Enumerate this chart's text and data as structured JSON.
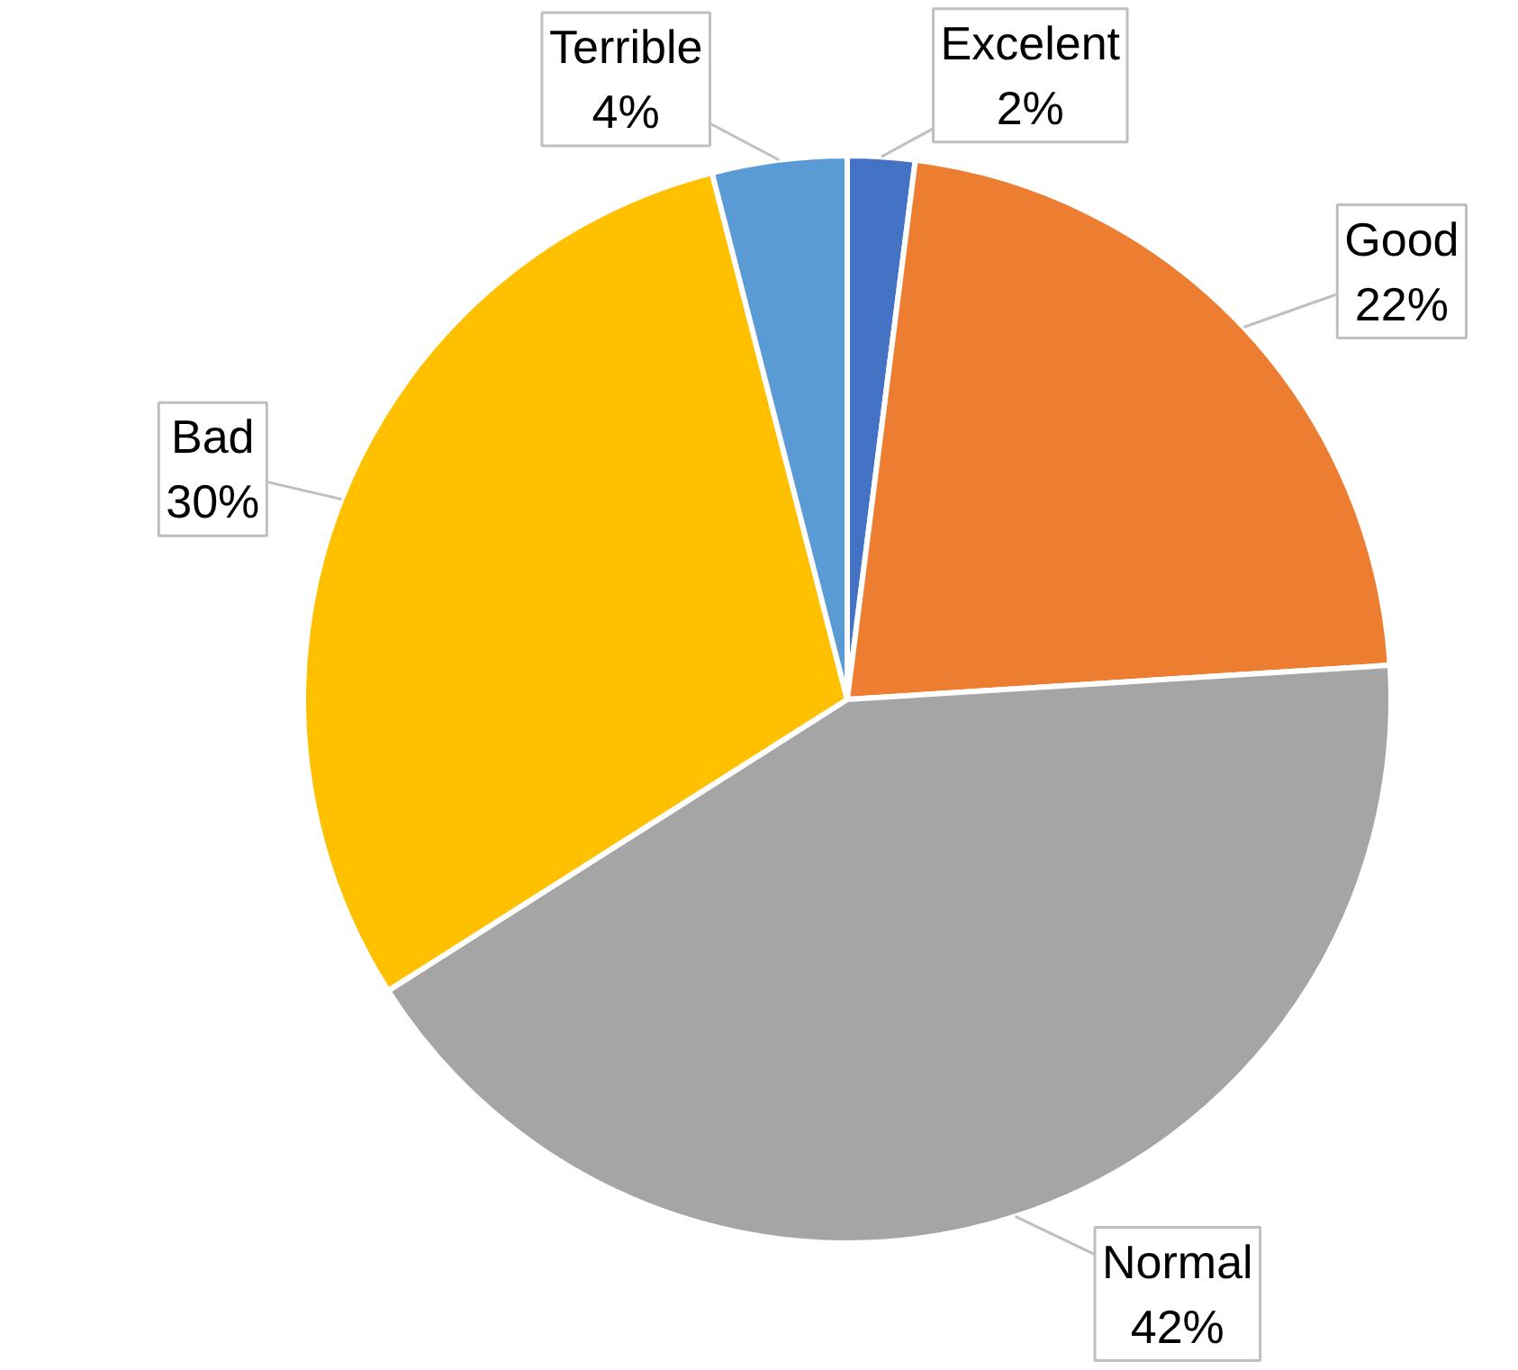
{
  "chart_data": {
    "type": "pie",
    "categories": [
      "Excelent",
      "Good",
      "Normal",
      "Bad",
      "Terrible"
    ],
    "values": [
      2,
      22,
      42,
      30,
      4
    ],
    "colors": [
      "#4472c4",
      "#ed7d31",
      "#a5a5a5",
      "#ffc000",
      "#5b9bd5"
    ],
    "value_labels": [
      "2%",
      "22%",
      "42%",
      "30%",
      "4%"
    ]
  }
}
